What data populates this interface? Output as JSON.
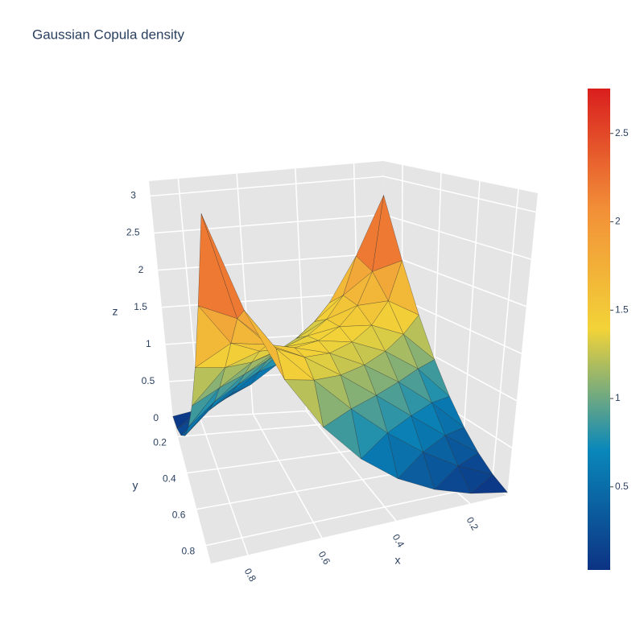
{
  "chart_data": {
    "type": "surface",
    "title": "Gaussian Copula density",
    "x_label": "x",
    "y_label": "y",
    "z_label": "z",
    "x": [
      0.1,
      0.2,
      0.3,
      0.4,
      0.5,
      0.6,
      0.7,
      0.8,
      0.9
    ],
    "y": [
      0.1,
      0.2,
      0.3,
      0.4,
      0.5,
      0.6,
      0.7,
      0.8,
      0.9
    ],
    "z": [
      [
        2.754,
        1.99,
        1.402,
        0.963,
        0.636,
        0.395,
        0.222,
        0.103,
        0.03
      ],
      [
        1.99,
        1.875,
        1.6,
        1.295,
        0.996,
        0.721,
        0.476,
        0.268,
        0.103
      ],
      [
        1.402,
        1.6,
        1.568,
        1.428,
        1.227,
        0.991,
        0.737,
        0.476,
        0.222
      ],
      [
        0.963,
        1.295,
        1.428,
        1.438,
        1.358,
        1.206,
        0.991,
        0.721,
        0.395
      ],
      [
        0.636,
        0.996,
        1.227,
        1.358,
        1.4,
        1.358,
        1.227,
        0.996,
        0.636
      ],
      [
        0.395,
        0.721,
        0.991,
        1.206,
        1.358,
        1.438,
        1.428,
        1.295,
        0.963
      ],
      [
        0.222,
        0.476,
        0.737,
        0.991,
        1.227,
        1.428,
        1.568,
        1.6,
        1.402
      ],
      [
        0.103,
        0.268,
        0.476,
        0.721,
        0.996,
        1.295,
        1.6,
        1.875,
        1.99
      ],
      [
        0.03,
        0.103,
        0.222,
        0.395,
        0.636,
        0.963,
        1.402,
        1.99,
        2.754
      ]
    ],
    "xlim": [
      0.1,
      0.9
    ],
    "ylim": [
      0.1,
      0.9
    ],
    "zlim": [
      0,
      3.2
    ],
    "xticks": [
      0.2,
      0.4,
      0.6,
      0.8
    ],
    "yticks": [
      0.2,
      0.4,
      0.6,
      0.8
    ],
    "zticks": [
      0,
      0.5,
      1,
      1.5,
      2,
      2.5,
      3
    ],
    "colorscale": [
      [
        0,
        "#0c3383"
      ],
      [
        0.25,
        "#0a88ba"
      ],
      [
        0.5,
        "#f2d338"
      ],
      [
        0.75,
        "#f28f38"
      ],
      [
        1,
        "#d91e1e"
      ]
    ],
    "colorbar_ticks": [
      0.5,
      1,
      1.5,
      2,
      2.5
    ],
    "grid": true
  }
}
